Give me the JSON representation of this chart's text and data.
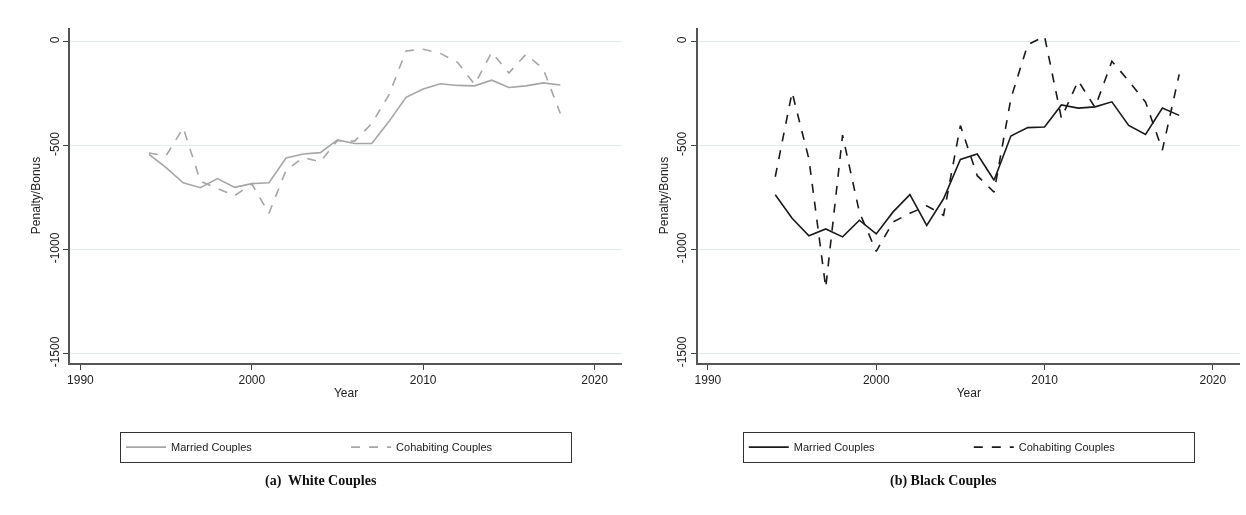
{
  "chart_data": [
    {
      "type": "line",
      "xlabel": "Year",
      "ylabel": "Penalty/Bonus",
      "annotations": [
        "(a)  White Couples"
      ],
      "x": [
        1994,
        1995,
        1996,
        1997,
        1998,
        1999,
        2000,
        2001,
        2002,
        2003,
        2004,
        2005,
        2006,
        2007,
        2008,
        2009,
        2010,
        2011,
        2012,
        2013,
        2014,
        2015,
        2016,
        2017,
        2018
      ],
      "series": [
        {
          "name": "Married Couples",
          "color": "#a6a6a6",
          "line_style": "solid",
          "values": [
            -542,
            -605,
            -678,
            -702,
            -658,
            -700,
            -682,
            -678,
            -559,
            -540,
            -533,
            -472,
            -489,
            -489,
            -384,
            -267,
            -227,
            -202,
            -210,
            -212,
            -185,
            -220,
            -212,
            -198,
            -208
          ]
        },
        {
          "name": "Cohabiting Couples",
          "color": "#a6a6a6",
          "line_style": "dashed",
          "values": [
            -535,
            -548,
            -414,
            -670,
            -706,
            -740,
            -683,
            -825,
            -617,
            -557,
            -577,
            -475,
            -478,
            -393,
            -256,
            -44,
            -36,
            -56,
            -99,
            -205,
            -51,
            -150,
            -60,
            -130,
            -345
          ]
        }
      ],
      "xlim": [
        1989.4,
        2021.6
      ],
      "xticks": [
        1990,
        2000,
        2010,
        2020
      ],
      "ylim": [
        -1546,
        68
      ],
      "yticks": [
        0,
        -500,
        -1000,
        -1500
      ],
      "grid": "y",
      "legend": "bottom"
    },
    {
      "type": "line",
      "xlabel": "Year",
      "ylabel": "Penalty/Bonus",
      "annotations": [
        "(b) Black Couples"
      ],
      "x": [
        1994,
        1995,
        1996,
        1997,
        1998,
        1999,
        2000,
        2001,
        2002,
        2003,
        2004,
        2005,
        2006,
        2007,
        2008,
        2009,
        2010,
        2011,
        2012,
        2013,
        2014,
        2015,
        2016,
        2017,
        2018
      ],
      "series": [
        {
          "name": "Married Couples",
          "color": "#1a1a1a",
          "line_style": "solid",
          "values": [
            -736,
            -849,
            -933,
            -900,
            -938,
            -858,
            -924,
            -818,
            -735,
            -883,
            -755,
            -566,
            -540,
            -666,
            -453,
            -413,
            -410,
            -304,
            -319,
            -313,
            -289,
            -402,
            -446,
            -319,
            -354
          ]
        },
        {
          "name": "Cohabiting Couples",
          "color": "#1a1a1a",
          "line_style": "dashed",
          "values": [
            -649,
            -243,
            -564,
            -1182,
            -449,
            -820,
            -1008,
            -866,
            -825,
            -789,
            -834,
            -403,
            -644,
            -723,
            -273,
            -14,
            26,
            -367,
            -188,
            -316,
            -94,
            -188,
            -290,
            -521,
            -157
          ]
        }
      ],
      "xlim": [
        1989.4,
        2021.6
      ],
      "xticks": [
        1990,
        2000,
        2010,
        2020
      ],
      "ylim": [
        -1546,
        68
      ],
      "yticks": [
        0,
        -500,
        -1000,
        -1500
      ],
      "grid": "y",
      "legend": "bottom"
    }
  ]
}
